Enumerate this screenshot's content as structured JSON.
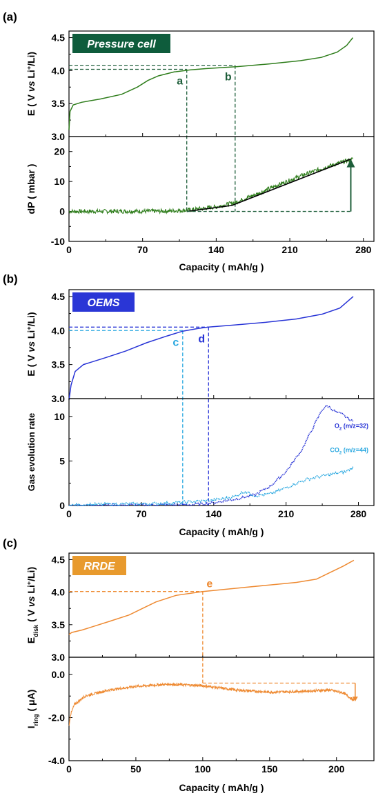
{
  "panels": [
    {
      "label": "(a)",
      "badge": "Pressure cell",
      "badge_color": "#0e5c3c",
      "line_color": "#2e7d1b",
      "guide_color": "#1e5e3a",
      "top_ylabel_html": "E ( V <i>vs</i> Li<sup>+</sup>/Li)",
      "bottom_ylabel_html": "dP ( mbar )",
      "xlabel": "Capacity ( mAh/g )"
    },
    {
      "label": "(b)",
      "badge": "OEMS",
      "badge_color": "#2a36d6",
      "line_color": "#2733d6",
      "guide_color": "#2733d6",
      "guide2_color": "#27a7e0",
      "top_ylabel_html": "E ( V <i>vs</i> Li<sup>+</sup>/Li)",
      "bottom_ylabel_html": "Gas evolution rate",
      "xlabel": "Capacity ( mAh/g )"
    },
    {
      "label": "(c)",
      "badge": "RRDE",
      "badge_color": "#e89a2d",
      "line_color": "#ee8a32",
      "guide_color": "#ee8a32",
      "top_ylabel_html": "E<sub>disk</sub> ( V <i>vs</i> Li<sup>+</sup>/Li)",
      "bottom_ylabel_html": "I<sub>ring</sub> ( μA)",
      "xlabel": "Capacity ( mAh/g )"
    }
  ],
  "chart_data": [
    {
      "type": "line",
      "panel": "(a)",
      "subplots": [
        {
          "ylim": [
            3.0,
            4.6
          ],
          "yticks": [
            "3.0",
            "3.5",
            "4.0",
            "4.5"
          ],
          "series": [
            {
              "values_xy": [
                [
                  0,
                  3.1
                ],
                [
                  1,
                  3.38
                ],
                [
                  4,
                  3.48
                ],
                [
                  12,
                  3.52
                ],
                [
                  30,
                  3.57
                ],
                [
                  50,
                  3.64
                ],
                [
                  65,
                  3.75
                ],
                [
                  75,
                  3.85
                ],
                [
                  85,
                  3.92
                ],
                [
                  100,
                  3.98
                ],
                [
                  115,
                  4.01
                ],
                [
                  130,
                  4.03
                ],
                [
                  160,
                  4.06
                ],
                [
                  190,
                  4.1
                ],
                [
                  220,
                  4.15
                ],
                [
                  240,
                  4.2
                ],
                [
                  255,
                  4.28
                ],
                [
                  264,
                  4.38
                ],
                [
                  270,
                  4.5
                ]
              ]
            }
          ],
          "guides": [
            {
              "name": "a",
              "x": 112,
              "y": 4.02
            },
            {
              "name": "b",
              "x": 158,
              "y": 4.08
            }
          ]
        },
        {
          "ylim": [
            -10,
            25
          ],
          "yticks": [
            "-10",
            "0",
            "10",
            "20"
          ],
          "series": [
            {
              "values_xy": [
                [
                  0,
                  0
                ],
                [
                  90,
                  0.1
                ],
                [
                  112,
                  0.4
                ],
                [
                  140,
                  1.5
                ],
                [
                  158,
                  3.0
                ],
                [
                  180,
                  6.0
                ],
                [
                  200,
                  9.0
                ],
                [
                  220,
                  11.8
                ],
                [
                  240,
                  14.3
                ],
                [
                  260,
                  16.5
                ],
                [
                  270,
                  17.5
                ]
              ]
            }
          ],
          "fit_line": [
            [
              112,
              0
            ],
            [
              155,
              2
            ],
            [
              268,
              17.5
            ]
          ],
          "baseline_y": 0,
          "arrow_x": 268,
          "arrow_to_y": 17.5
        }
      ],
      "xlim": [
        0,
        290
      ],
      "xticks": [
        "0",
        "70",
        "140",
        "210",
        "280"
      ],
      "xlabel": "Capacity ( mAh/g )"
    },
    {
      "type": "line",
      "panel": "(b)",
      "subplots": [
        {
          "ylim": [
            3.0,
            4.6
          ],
          "yticks": [
            "3.0",
            "3.5",
            "4.0",
            "4.5"
          ],
          "series": [
            {
              "values_xy": [
                [
                  0,
                  2.98
                ],
                [
                  2,
                  3.2
                ],
                [
                  6,
                  3.4
                ],
                [
                  14,
                  3.5
                ],
                [
                  35,
                  3.6
                ],
                [
                  55,
                  3.7
                ],
                [
                  75,
                  3.82
                ],
                [
                  95,
                  3.92
                ],
                [
                  110,
                  3.99
                ],
                [
                  125,
                  4.03
                ],
                [
                  135,
                  4.05
                ],
                [
                  160,
                  4.08
                ],
                [
                  190,
                  4.12
                ],
                [
                  220,
                  4.17
                ],
                [
                  245,
                  4.24
                ],
                [
                  262,
                  4.33
                ],
                [
                  275,
                  4.5
                ]
              ]
            }
          ],
          "guides": [
            {
              "name": "c",
              "x": 110,
              "y": 4.0,
              "color_key": "guide2_color"
            },
            {
              "name": "d",
              "x": 135,
              "y": 4.05,
              "color_key": "guide_color"
            }
          ]
        },
        {
          "ylim": [
            0,
            12
          ],
          "yticks": [
            "0",
            "5",
            "10"
          ],
          "series": [
            {
              "name": "O<tspan baseline-shift='sub' font-size='6'>2</tspan> (m/z=32)",
              "values_xy": [
                [
                  0,
                  0
                ],
                [
                  60,
                  0.05
                ],
                [
                  120,
                  0.1
                ],
                [
                  140,
                  0.3
                ],
                [
                  160,
                  0.7
                ],
                [
                  180,
                  1.2
                ],
                [
                  195,
                  2.2
                ],
                [
                  210,
                  3.8
                ],
                [
                  225,
                  6.2
                ],
                [
                  235,
                  8.5
                ],
                [
                  245,
                  10.8
                ],
                [
                  250,
                  11.2
                ],
                [
                  258,
                  10.5
                ],
                [
                  265,
                  10.2
                ],
                [
                  272,
                  9.6
                ],
                [
                  275,
                  9.4
                ]
              ]
            },
            {
              "name": "CO<tspan baseline-shift='sub' font-size='6'>2</tspan> (m/z=44)",
              "values_xy": [
                [
                  0,
                  0
                ],
                [
                  20,
                  0.1
                ],
                [
                  40,
                  0.15
                ],
                [
                  80,
                  0.2
                ],
                [
                  110,
                  0.35
                ],
                [
                  140,
                  0.6
                ],
                [
                  160,
                  1.0
                ],
                [
                  170,
                  1.6
                ],
                [
                  180,
                  1.1
                ],
                [
                  195,
                  1.3
                ],
                [
                  210,
                  2.0
                ],
                [
                  220,
                  2.5
                ],
                [
                  232,
                  3.0
                ],
                [
                  245,
                  3.3
                ],
                [
                  258,
                  3.6
                ],
                [
                  268,
                  3.8
                ],
                [
                  275,
                  4.3
                ]
              ]
            }
          ]
        }
      ],
      "xlim": [
        0,
        295
      ],
      "xticks": [
        "0",
        "70",
        "140",
        "210",
        "280"
      ],
      "xlabel": "Capacity ( mAh/g )"
    },
    {
      "type": "line",
      "panel": "(c)",
      "subplots": [
        {
          "ylim": [
            3.0,
            4.6
          ],
          "yticks": [
            "3.0",
            "3.5",
            "4.0",
            "4.5"
          ],
          "series": [
            {
              "values_xy": [
                [
                  0,
                  3.35
                ],
                [
                  2,
                  3.38
                ],
                [
                  10,
                  3.42
                ],
                [
                  30,
                  3.55
                ],
                [
                  45,
                  3.65
                ],
                [
                  55,
                  3.75
                ],
                [
                  65,
                  3.85
                ],
                [
                  80,
                  3.95
                ],
                [
                  100,
                  4.01
                ],
                [
                  130,
                  4.07
                ],
                [
                  150,
                  4.11
                ],
                [
                  170,
                  4.15
                ],
                [
                  185,
                  4.2
                ],
                [
                  195,
                  4.3
                ],
                [
                  205,
                  4.4
                ],
                [
                  213,
                  4.49
                ]
              ]
            }
          ],
          "guides": [
            {
              "name": "e",
              "x": 100,
              "y": 4.01
            }
          ]
        },
        {
          "ylim": [
            -4,
            0.8
          ],
          "yticks": [
            "-4.0",
            "-2.0",
            "0.0"
          ],
          "series": [
            {
              "values_xy": [
                [
                  0,
                  -2.4
                ],
                [
                  1,
                  -1.9
                ],
                [
                  4,
                  -1.4
                ],
                [
                  12,
                  -1.0
                ],
                [
                  30,
                  -0.72
                ],
                [
                  50,
                  -0.55
                ],
                [
                  75,
                  -0.45
                ],
                [
                  100,
                  -0.52
                ],
                [
                  125,
                  -0.72
                ],
                [
                  150,
                  -0.82
                ],
                [
                  175,
                  -0.78
                ],
                [
                  195,
                  -0.72
                ],
                [
                  205,
                  -0.85
                ],
                [
                  213,
                  -1.2
                ]
              ]
            }
          ],
          "dashed_box": {
            "x1": 100,
            "x2": 214,
            "y": -0.4,
            "arrow_to_y": -1.25
          }
        }
      ],
      "xlim": [
        0,
        228
      ],
      "xticks": [
        "0",
        "50",
        "100",
        "150",
        "200"
      ],
      "xlabel": "Capacity ( mAh/g )"
    }
  ]
}
